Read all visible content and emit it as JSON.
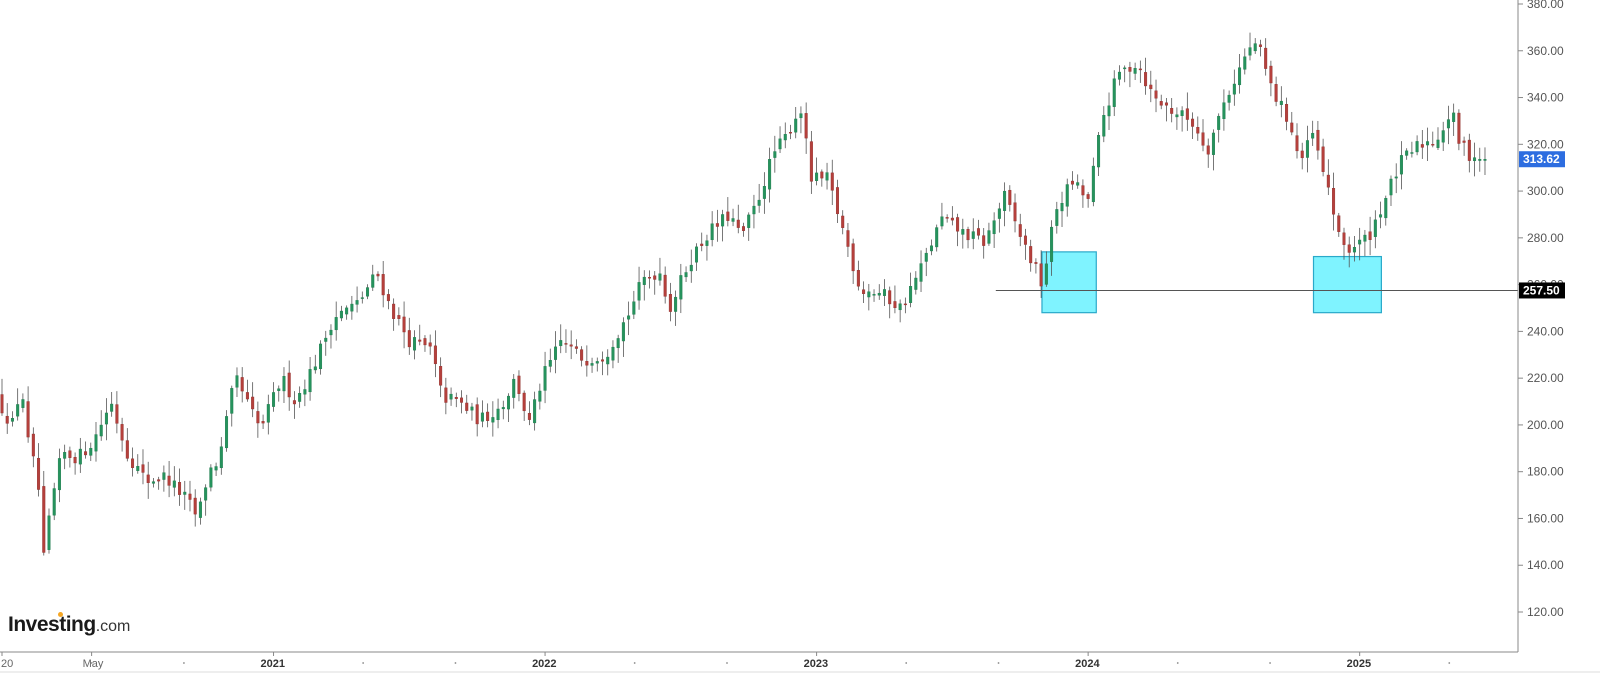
{
  "brand": {
    "name_main": "Investing",
    "name_suffix": ".com",
    "accent_color": "#f5a623"
  },
  "colors": {
    "up": "#26935d",
    "down": "#b5403c",
    "wick": "#555555",
    "box_fill": "#7ff3ff",
    "box_stroke": "#2aa9c9",
    "current_price_badge": "#2d6de0",
    "support_badge": "#000000"
  },
  "chart_data": {
    "type": "candlestick",
    "timeframe": "weekly",
    "ylim": [
      110,
      380
    ],
    "y_ticks": [
      "120.00",
      "140.00",
      "160.00",
      "180.00",
      "200.00",
      "220.00",
      "240.00",
      "260.00",
      "280.00",
      "300.00",
      "320.00",
      "340.00",
      "360.00",
      "380.00"
    ],
    "x_labels": [
      {
        "text": "20",
        "t": 2020.0,
        "major": false
      },
      {
        "text": "May",
        "t": 2020.33,
        "major": false
      },
      {
        "text": "2021",
        "t": 2021.0,
        "major": true
      },
      {
        "text": "2022",
        "t": 2022.0,
        "major": true
      },
      {
        "text": "2023",
        "t": 2023.0,
        "major": true
      },
      {
        "text": "2024",
        "t": 2024.0,
        "major": true
      },
      {
        "text": "2025",
        "t": 2025.0,
        "major": true
      }
    ],
    "x_minor_ticks": [
      2020.33,
      2020.67,
      2021.33,
      2021.67,
      2022.33,
      2022.67,
      2023.33,
      2023.67,
      2024.33,
      2024.67,
      2025.33
    ],
    "current_price": 313.62,
    "current_price_label": "313.62",
    "support_level": 257.5,
    "support_label": "257.50",
    "support_line_start": 2023.66,
    "highlight_boxes": [
      {
        "t_start": 2023.83,
        "t_end": 2024.03,
        "y_low": 248,
        "y_high": 274
      },
      {
        "t_start": 2024.83,
        "t_end": 2025.08,
        "y_low": 248,
        "y_high": 272
      }
    ],
    "close_path": [
      [
        2020.0,
        212
      ],
      [
        2020.03,
        205
      ],
      [
        2020.06,
        200
      ],
      [
        2020.09,
        218
      ],
      [
        2020.12,
        188
      ],
      [
        2020.15,
        180
      ],
      [
        2020.17,
        140
      ],
      [
        2020.2,
        165
      ],
      [
        2020.24,
        188
      ],
      [
        2020.3,
        186
      ],
      [
        2020.36,
        194
      ],
      [
        2020.42,
        210
      ],
      [
        2020.48,
        188
      ],
      [
        2020.55,
        176
      ],
      [
        2020.62,
        178
      ],
      [
        2020.7,
        168
      ],
      [
        2020.74,
        160
      ],
      [
        2020.78,
        180
      ],
      [
        2020.82,
        185
      ],
      [
        2020.86,
        210
      ],
      [
        2020.88,
        220
      ],
      [
        2020.92,
        210
      ],
      [
        2020.97,
        198
      ],
      [
        2021.05,
        220
      ],
      [
        2021.1,
        210
      ],
      [
        2021.17,
        226
      ],
      [
        2021.24,
        246
      ],
      [
        2021.33,
        252
      ],
      [
        2021.4,
        265
      ],
      [
        2021.45,
        250
      ],
      [
        2021.52,
        236
      ],
      [
        2021.6,
        232
      ],
      [
        2021.64,
        212
      ],
      [
        2021.7,
        210
      ],
      [
        2021.78,
        202
      ],
      [
        2021.86,
        208
      ],
      [
        2021.91,
        220
      ],
      [
        2021.96,
        200
      ],
      [
        2022.01,
        220
      ],
      [
        2022.08,
        236
      ],
      [
        2022.16,
        228
      ],
      [
        2022.24,
        230
      ],
      [
        2022.32,
        246
      ],
      [
        2022.38,
        262
      ],
      [
        2022.44,
        266
      ],
      [
        2022.48,
        250
      ],
      [
        2022.55,
        270
      ],
      [
        2022.62,
        282
      ],
      [
        2022.7,
        290
      ],
      [
        2022.74,
        280
      ],
      [
        2022.8,
        295
      ],
      [
        2022.86,
        316
      ],
      [
        2022.9,
        322
      ],
      [
        2022.96,
        336
      ],
      [
        2023.0,
        305
      ],
      [
        2023.06,
        305
      ],
      [
        2023.12,
        282
      ],
      [
        2023.18,
        258
      ],
      [
        2023.26,
        256
      ],
      [
        2023.33,
        250
      ],
      [
        2023.4,
        266
      ],
      [
        2023.48,
        288
      ],
      [
        2023.56,
        282
      ],
      [
        2023.64,
        278
      ],
      [
        2023.71,
        298
      ],
      [
        2023.78,
        278
      ],
      [
        2023.82,
        268
      ],
      [
        2023.85,
        260
      ],
      [
        2023.9,
        292
      ],
      [
        2023.96,
        304
      ],
      [
        2024.02,
        296
      ],
      [
        2024.07,
        330
      ],
      [
        2024.13,
        350
      ],
      [
        2024.2,
        355
      ],
      [
        2024.26,
        340
      ],
      [
        2024.32,
        335
      ],
      [
        2024.4,
        330
      ],
      [
        2024.46,
        318
      ],
      [
        2024.52,
        338
      ],
      [
        2024.6,
        358
      ],
      [
        2024.64,
        364
      ],
      [
        2024.7,
        342
      ],
      [
        2024.76,
        330
      ],
      [
        2024.8,
        312
      ],
      [
        2024.85,
        325
      ],
      [
        2024.88,
        308
      ],
      [
        2024.91,
        300
      ],
      [
        2024.94,
        280
      ],
      [
        2024.98,
        275
      ],
      [
        2025.05,
        280
      ],
      [
        2025.11,
        296
      ],
      [
        2025.17,
        312
      ],
      [
        2025.24,
        320
      ],
      [
        2025.3,
        322
      ],
      [
        2025.36,
        334
      ],
      [
        2025.38,
        322
      ],
      [
        2025.42,
        316
      ],
      [
        2025.48,
        313.62
      ]
    ]
  }
}
